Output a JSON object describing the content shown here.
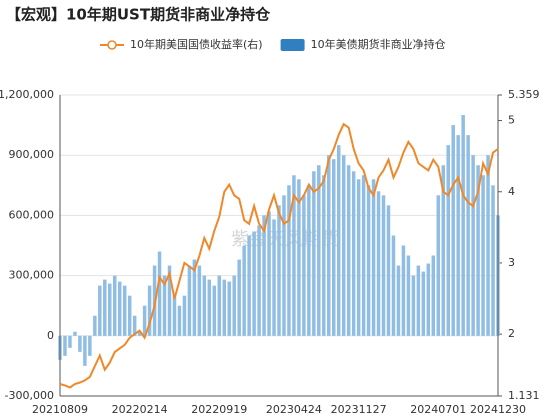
{
  "chart_data": {
    "type": "bar_line",
    "title": "【宏观】10年期UST期货非商业净持仓",
    "watermark": "紫金天风期货",
    "categories": [
      "20210809",
      null,
      null,
      null,
      null,
      null,
      null,
      null,
      null,
      null,
      null,
      null,
      null,
      null,
      null,
      null,
      "20220214",
      null,
      null,
      null,
      null,
      null,
      null,
      null,
      null,
      null,
      null,
      null,
      null,
      null,
      null,
      null,
      "20220919",
      null,
      null,
      null,
      null,
      null,
      null,
      null,
      null,
      null,
      null,
      null,
      null,
      null,
      null,
      "20230424",
      null,
      null,
      null,
      null,
      null,
      null,
      null,
      null,
      null,
      null,
      null,
      null,
      "20231127",
      null,
      null,
      null,
      null,
      null,
      null,
      null,
      null,
      null,
      null,
      null,
      null,
      null,
      null,
      null,
      "20240701",
      null,
      null,
      null,
      null,
      null,
      null,
      null,
      null,
      null,
      null,
      null,
      "20241230"
    ],
    "series": [
      {
        "name": "10年美债期货非商业净持仓",
        "color": "#8fbde3",
        "type": "bar",
        "values": [
          -120000,
          -100000,
          -60000,
          20000,
          -80000,
          -150000,
          -100000,
          100000,
          250000,
          280000,
          260000,
          300000,
          270000,
          250000,
          200000,
          100000,
          20000,
          150000,
          250000,
          350000,
          420000,
          300000,
          350000,
          200000,
          150000,
          200000,
          350000,
          380000,
          350000,
          300000,
          280000,
          250000,
          300000,
          280000,
          270000,
          300000,
          380000,
          450000,
          500000,
          520000,
          550000,
          600000,
          620000,
          580000,
          650000,
          700000,
          750000,
          800000,
          780000,
          700000,
          750000,
          820000,
          850000,
          800000,
          900000,
          880000,
          950000,
          900000,
          850000,
          820000,
          780000,
          800000,
          750000,
          780000,
          720000,
          700000,
          650000,
          500000,
          350000,
          450000,
          400000,
          300000,
          350000,
          320000,
          360000,
          400000,
          700000,
          850000,
          950000,
          1050000,
          1000000,
          1100000,
          1000000,
          900000,
          850000,
          800000,
          900000,
          750000,
          600000
        ]
      },
      {
        "name": "10年期美国国债收益率(右)",
        "color": "#f0882a",
        "type": "line",
        "axis": "y2",
        "values": [
          1.3,
          1.28,
          1.25,
          1.3,
          1.32,
          1.35,
          1.4,
          1.55,
          1.7,
          1.5,
          1.6,
          1.75,
          1.8,
          1.85,
          1.95,
          2.0,
          2.05,
          1.95,
          2.15,
          2.4,
          2.8,
          2.7,
          2.85,
          2.5,
          2.75,
          3.0,
          2.95,
          2.9,
          3.1,
          3.35,
          3.2,
          3.45,
          3.65,
          4.0,
          4.1,
          3.95,
          3.9,
          3.6,
          3.55,
          3.8,
          3.55,
          3.45,
          3.75,
          3.95,
          3.7,
          3.55,
          3.6,
          3.95,
          3.85,
          3.95,
          4.1,
          4.0,
          4.05,
          4.15,
          4.45,
          4.6,
          4.8,
          4.95,
          4.9,
          4.6,
          4.4,
          4.3,
          4.05,
          3.95,
          4.2,
          4.3,
          4.45,
          4.2,
          4.35,
          4.55,
          4.7,
          4.6,
          4.4,
          4.35,
          4.3,
          4.45,
          4.35,
          4.0,
          3.95,
          4.1,
          4.2,
          3.95,
          3.85,
          3.8,
          4.0,
          4.4,
          4.25,
          4.55,
          4.6
        ]
      }
    ],
    "ylim": [
      -300000,
      1200000
    ],
    "yticks": [
      {
        "value": -300000,
        "label": "-300,000"
      },
      0,
      {
        "value": 300000,
        "label": "300,000"
      },
      {
        "value": 600000,
        "label": "600,000"
      },
      {
        "value": 900000,
        "label": "900,000"
      },
      {
        "value": 1200000,
        "label": "1,200,000"
      }
    ],
    "y2lim": [
      1.131,
      5.359
    ],
    "y2ticks": [
      1.131,
      2,
      3,
      4,
      5,
      5.359
    ],
    "grid": true
  }
}
